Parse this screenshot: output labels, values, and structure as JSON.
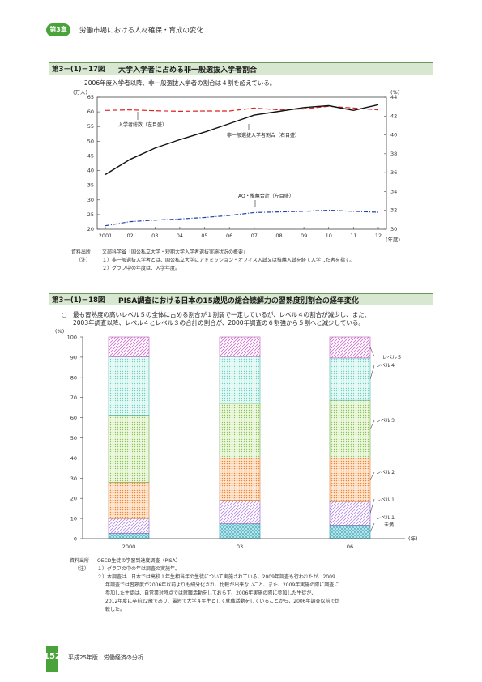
{
  "header": {
    "chapter_badge": "第3章",
    "chapter_title": "労働市場における人材確保・育成の変化"
  },
  "fig17": {
    "number": "第3－(1)－17図",
    "title": "大学入学者に占める非一般選抜入学者割合",
    "subtitle": "2006年度入学者以降、非一般選抜入学者の割合は４割を超えている。",
    "left_unit": "(万人)",
    "right_unit": "(%)",
    "x_unit": "(年度)",
    "labels": {
      "total": "入学者総数（左目盛）",
      "nonregular": "非一般選抜入学者割合（右目盛）",
      "ao": "AO・推薦合計（左目盛）"
    },
    "source_label": "資料出所",
    "source": "文部科学省「国公私立大学・短期大学入学者選抜実施状況の概要」",
    "notes_label": "（注）",
    "notes": [
      "１）非一般選抜入学者とは、国公私立大学にアドミッション・オフィス入試又は推薦入試を経て入学した者を指す。",
      "２）グラフ中の年度は、入学年度。"
    ]
  },
  "fig18": {
    "number": "第3－(1)－18図",
    "title": "PISA調査における日本の15歳児の総合読解力の習熟度別割合の経年変化",
    "subtitle_line1": "○　最も習熟度の高いレベル５の全体に占める割合が１割弱で一定しているが、レベル４の割合が減少し、また、",
    "subtitle_line2": "2003年調査以降、レベル４とレベル３の合計の割合が、2000年調査の６割強から５割へと減少している。",
    "y_unit": "(%)",
    "x_unit": "(年)",
    "level_labels": [
      "レベル５",
      "レベル４",
      "レベル３",
      "レベル２",
      "レベル１",
      "レベル１",
      "未満"
    ],
    "source_label": "資料出所",
    "source": "OECD生徒の学習到達度調査（PISA）",
    "notes_label": "（注）",
    "notes": [
      "１）グラフの中の年は調査の実施年。",
      "２）本調査は、日本では高校１年生相当年の生徒について実施されている。2009年調査も行われたが、2009",
      "年調査では習熟度が2006年以前よりも細分化され、比較が出来ないこと、また、2009年実施の際に調査に",
      "参加した生徒は、自営業対時点では就職活動をしておらず、2006年実施の際に参加した生徒が、",
      "2012年度に卒前22歳であり、最短で大学４年生として就職活動をしていることから、2006年調査以前で比",
      "較した。"
    ]
  },
  "footer": {
    "page": "152",
    "text": "平成25年版　労働経済の分析"
  },
  "chart_data": [
    {
      "type": "line",
      "title": "大学入学者に占める非一般選抜入学者割合",
      "x": [
        "2001",
        "02",
        "03",
        "04",
        "05",
        "06",
        "07",
        "08",
        "09",
        "10",
        "11",
        "12"
      ],
      "series": [
        {
          "name": "入学者総数（左目盛）",
          "axis": "left",
          "values": [
            60.5,
            60.7,
            60.4,
            60.2,
            60.3,
            60.3,
            61.3,
            60.7,
            61.0,
            61.9,
            61.3,
            60.7
          ],
          "color": "#dd2222",
          "style": "dashed"
        },
        {
          "name": "非一般選抜入学者割合（右目盛）",
          "axis": "right",
          "values": [
            35.8,
            37.4,
            38.6,
            39.5,
            40.3,
            41.2,
            42.1,
            42.5,
            42.9,
            43.1,
            42.6,
            43.2
          ],
          "color": "#111111",
          "style": "solid"
        },
        {
          "name": "AO・推薦合計（左目盛）",
          "axis": "left",
          "values": [
            21.2,
            22.6,
            23.1,
            23.5,
            24.0,
            24.7,
            25.7,
            25.9,
            26.1,
            26.5,
            26.1,
            25.8
          ],
          "color": "#2244aa",
          "style": "dashdot"
        }
      ],
      "left_ylim": [
        20,
        65
      ],
      "left_ticks": [
        "20",
        "25",
        "30",
        "35",
        "40",
        "45",
        "50",
        "55",
        "60",
        "65"
      ],
      "right_ylim": [
        30,
        44
      ],
      "right_ticks": [
        "30",
        "32",
        "34",
        "36",
        "38",
        "40",
        "42",
        "44"
      ],
      "grid": false
    },
    {
      "type": "bar",
      "stacked": true,
      "title": "PISA調査における日本の15歳児の総合読解力の習熟度別割合の経年変化",
      "categories": [
        "2000",
        "03",
        "06"
      ],
      "series": [
        {
          "name": "レベル１未満",
          "values": [
            2.7,
            7.4,
            6.7
          ],
          "color": "#4bb9c9"
        },
        {
          "name": "レベル１",
          "values": [
            7.3,
            11.6,
            11.7
          ],
          "color": "#c9a6e8"
        },
        {
          "name": "レベル２",
          "values": [
            18.0,
            20.9,
            21.5
          ],
          "color": "#f3a259"
        },
        {
          "name": "レベル３",
          "values": [
            33.3,
            27.2,
            28.7
          ],
          "color": "#b6de84"
        },
        {
          "name": "レベル４",
          "values": [
            28.8,
            23.2,
            21.0
          ],
          "color": "#9fe6de"
        },
        {
          "name": "レベル５",
          "values": [
            9.9,
            9.7,
            10.4
          ],
          "color": "#e48ee0"
        }
      ],
      "ylim": [
        0,
        100
      ],
      "y_ticks": [
        "0",
        "10",
        "20",
        "30",
        "40",
        "50",
        "60",
        "70",
        "80",
        "90",
        "100"
      ],
      "grid": false
    }
  ]
}
